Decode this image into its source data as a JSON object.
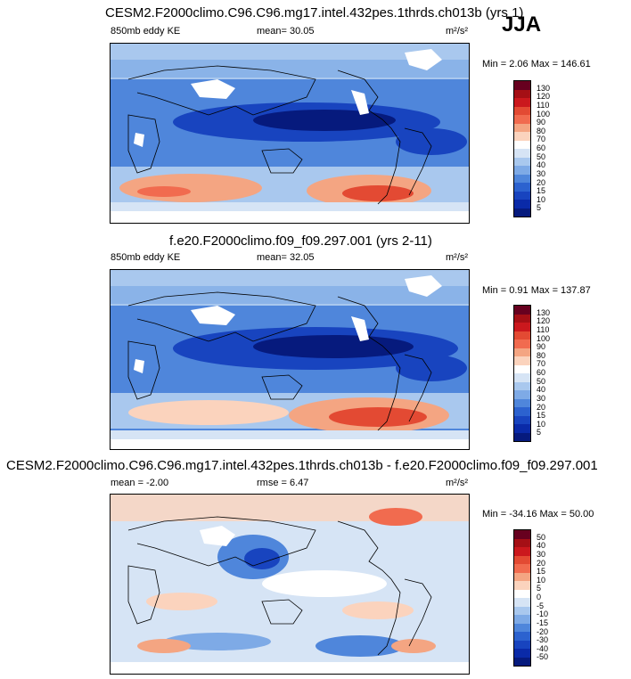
{
  "season": "JJA",
  "panels": [
    {
      "title": "CESM2.F2000climo.C96.C96.mg17.intel.432pes.1thrds.ch013b (yrs 1)",
      "left_label": "850mb eddy KE",
      "center_label": "mean=  30.05",
      "units": "m²/s²",
      "minmax": "Min =  2.06 Max = 146.61",
      "colorbar_labels": [
        "130",
        "120",
        "110",
        "100",
        "90",
        "80",
        "70",
        "60",
        "50",
        "40",
        "30",
        "20",
        "15",
        "10",
        "5"
      ],
      "colorbar_colors": [
        "#67001f",
        "#a50f15",
        "#cb181d",
        "#e34a33",
        "#f16b4f",
        "#f4a582",
        "#fbd3bd",
        "#ffffff",
        "#d6e4f5",
        "#a9c8ee",
        "#7eaae6",
        "#4f86db",
        "#2c62cf",
        "#1844bf",
        "#0a2aa8",
        "#061a7d"
      ]
    },
    {
      "title": "f.e20.F2000climo.f09_f09.297.001 (yrs 2-11)",
      "left_label": "850mb eddy KE",
      "center_label": "mean=  32.05",
      "units": "m²/s²",
      "minmax": "Min =  0.91 Max = 137.87",
      "colorbar_labels": [
        "130",
        "120",
        "110",
        "100",
        "90",
        "80",
        "70",
        "60",
        "50",
        "40",
        "30",
        "20",
        "15",
        "10",
        "5"
      ],
      "colorbar_colors": [
        "#67001f",
        "#a50f15",
        "#cb181d",
        "#e34a33",
        "#f16b4f",
        "#f4a582",
        "#fbd3bd",
        "#ffffff",
        "#d6e4f5",
        "#a9c8ee",
        "#7eaae6",
        "#4f86db",
        "#2c62cf",
        "#1844bf",
        "#0a2aa8",
        "#061a7d"
      ]
    },
    {
      "title": "CESM2.F2000climo.C96.C96.mg17.intel.432pes.1thrds.ch013b - f.e20.F2000climo.f09_f09.297.001",
      "left_label": "mean =  -2.00",
      "center_label": "rmse =  6.47",
      "units": "m²/s²",
      "minmax": "Min = -34.16 Max =  50.00",
      "colorbar_labels": [
        "50",
        "40",
        "30",
        "20",
        "15",
        "10",
        "5",
        "0",
        "-5",
        "-10",
        "-15",
        "-20",
        "-30",
        "-40",
        "-50"
      ],
      "colorbar_colors": [
        "#67001f",
        "#a50f15",
        "#cb181d",
        "#e34a33",
        "#f16b4f",
        "#f4a582",
        "#fbd3bd",
        "#ffffff",
        "#d6e4f5",
        "#a9c8ee",
        "#7eaae6",
        "#4f86db",
        "#2c62cf",
        "#1844bf",
        "#0a2aa8",
        "#061a7d"
      ]
    }
  ]
}
